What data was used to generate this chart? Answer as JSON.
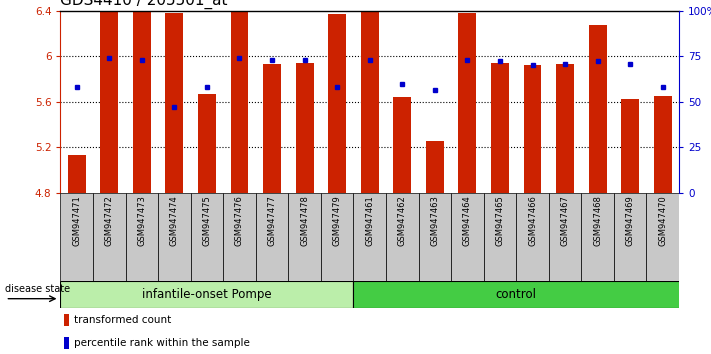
{
  "title": "GDS4410 / 205501_at",
  "samples": [
    "GSM947471",
    "GSM947472",
    "GSM947473",
    "GSM947474",
    "GSM947475",
    "GSM947476",
    "GSM947477",
    "GSM947478",
    "GSM947479",
    "GSM947461",
    "GSM947462",
    "GSM947463",
    "GSM947464",
    "GSM947465",
    "GSM947466",
    "GSM947467",
    "GSM947468",
    "GSM947469",
    "GSM947470"
  ],
  "bar_values": [
    5.13,
    6.4,
    6.39,
    6.38,
    5.67,
    6.4,
    5.93,
    5.94,
    6.37,
    6.4,
    5.64,
    5.26,
    6.38,
    5.94,
    5.92,
    5.93,
    6.27,
    5.62,
    5.65
  ],
  "blue_dots": [
    5.73,
    5.98,
    5.97,
    5.55,
    5.73,
    5.98,
    5.97,
    5.97,
    5.73,
    5.97,
    5.76,
    5.7,
    5.97,
    5.96,
    5.92,
    5.93,
    5.96,
    5.93,
    5.73
  ],
  "ymin": 4.8,
  "ymax": 6.4,
  "yticks": [
    4.8,
    5.2,
    5.6,
    6.0,
    6.4
  ],
  "ytick_labels": [
    "4.8",
    "5.2",
    "5.6",
    "6",
    "6.4"
  ],
  "right_yticks": [
    0,
    25,
    50,
    75,
    100
  ],
  "right_ytick_labels": [
    "0",
    "25",
    "50",
    "75",
    "100%"
  ],
  "bar_color": "#cc2200",
  "dot_color": "#0000cc",
  "bar_bottom": 4.8,
  "group1_count": 9,
  "group1_label": "infantile-onset Pompe",
  "group2_label": "control",
  "group1_color": "#bbeeaa",
  "group2_color": "#44cc44",
  "disease_state_label": "disease state",
  "legend_bar": "transformed count",
  "legend_dot": "percentile rank within the sample",
  "title_fontsize": 11,
  "tick_fontsize": 7.5,
  "sample_fontsize": 6.0,
  "group_fontsize": 8.5,
  "legend_fontsize": 7.5
}
